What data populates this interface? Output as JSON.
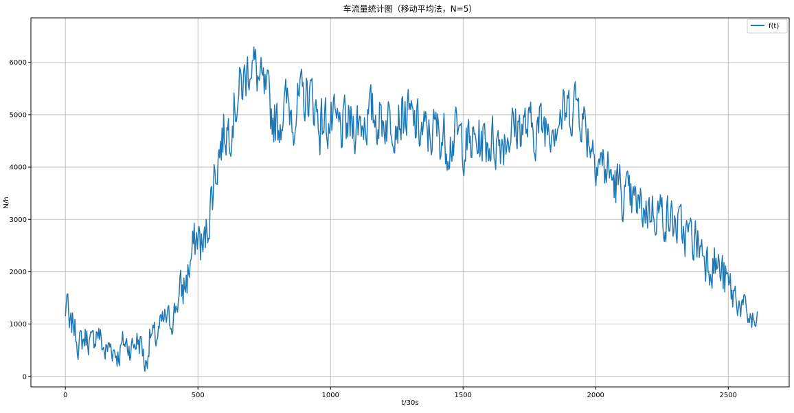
{
  "chart_data": {
    "type": "line",
    "title": "车流量统计图（移动平均法，N=5）",
    "xlabel": "t/30s",
    "ylabel": "N/h",
    "xlim": [
      -130,
      2730
    ],
    "ylim": [
      -200,
      6850
    ],
    "xticks": [
      0,
      500,
      1000,
      1500,
      2000,
      2500
    ],
    "yticks": [
      0,
      1000,
      2000,
      3000,
      4000,
      5000,
      6000
    ],
    "grid": true,
    "legend_position": "top-right",
    "series": [
      {
        "name": "f(t)",
        "color": "#1f77b4",
        "keypoints": [
          [
            0,
            1150
          ],
          [
            5,
            1640
          ],
          [
            15,
            850
          ],
          [
            30,
            1030
          ],
          [
            50,
            600
          ],
          [
            80,
            780
          ],
          [
            100,
            580
          ],
          [
            120,
            900
          ],
          [
            150,
            450
          ],
          [
            170,
            600
          ],
          [
            200,
            400
          ],
          [
            220,
            650
          ],
          [
            250,
            550
          ],
          [
            270,
            700
          ],
          [
            290,
            600
          ],
          [
            300,
            120
          ],
          [
            320,
            800
          ],
          [
            340,
            700
          ],
          [
            360,
            950
          ],
          [
            380,
            1100
          ],
          [
            400,
            1050
          ],
          [
            420,
            1400
          ],
          [
            440,
            1600
          ],
          [
            460,
            1900
          ],
          [
            480,
            2400
          ],
          [
            500,
            2700
          ],
          [
            520,
            2400
          ],
          [
            540,
            3000
          ],
          [
            560,
            3800
          ],
          [
            580,
            4300
          ],
          [
            600,
            4700
          ],
          [
            620,
            4800
          ],
          [
            640,
            5200
          ],
          [
            660,
            5500
          ],
          [
            680,
            5700
          ],
          [
            700,
            6100
          ],
          [
            720,
            5800
          ],
          [
            740,
            5500
          ],
          [
            760,
            5300
          ],
          [
            780,
            5000
          ],
          [
            800,
            4800
          ],
          [
            820,
            5100
          ],
          [
            840,
            5200
          ],
          [
            860,
            5000
          ],
          [
            880,
            5200
          ],
          [
            900,
            5300
          ],
          [
            920,
            5400
          ],
          [
            940,
            5200
          ],
          [
            960,
            4800
          ],
          [
            980,
            4900
          ],
          [
            1000,
            4800
          ],
          [
            1040,
            4700
          ],
          [
            1080,
            4800
          ],
          [
            1120,
            4900
          ],
          [
            1160,
            5000
          ],
          [
            1200,
            4900
          ],
          [
            1240,
            4950
          ],
          [
            1280,
            5000
          ],
          [
            1320,
            4800
          ],
          [
            1360,
            4600
          ],
          [
            1400,
            4700
          ],
          [
            1440,
            4500
          ],
          [
            1480,
            4600
          ],
          [
            1520,
            4400
          ],
          [
            1560,
            4500
          ],
          [
            1600,
            4500
          ],
          [
            1640,
            4500
          ],
          [
            1680,
            4700
          ],
          [
            1720,
            4800
          ],
          [
            1760,
            4700
          ],
          [
            1800,
            4800
          ],
          [
            1840,
            4900
          ],
          [
            1880,
            5000
          ],
          [
            1900,
            5100
          ],
          [
            1930,
            5300
          ],
          [
            1960,
            4800
          ],
          [
            1990,
            4400
          ],
          [
            2020,
            4100
          ],
          [
            2060,
            3800
          ],
          [
            2100,
            3500
          ],
          [
            2140,
            3300
          ],
          [
            2180,
            3200
          ],
          [
            2220,
            3200
          ],
          [
            2260,
            3100
          ],
          [
            2300,
            2900
          ],
          [
            2340,
            2700
          ],
          [
            2380,
            2600
          ],
          [
            2420,
            2300
          ],
          [
            2460,
            2100
          ],
          [
            2500,
            1700
          ],
          [
            2540,
            1400
          ],
          [
            2570,
            1200
          ],
          [
            2590,
            1050
          ],
          [
            2610,
            950
          ]
        ]
      }
    ]
  }
}
